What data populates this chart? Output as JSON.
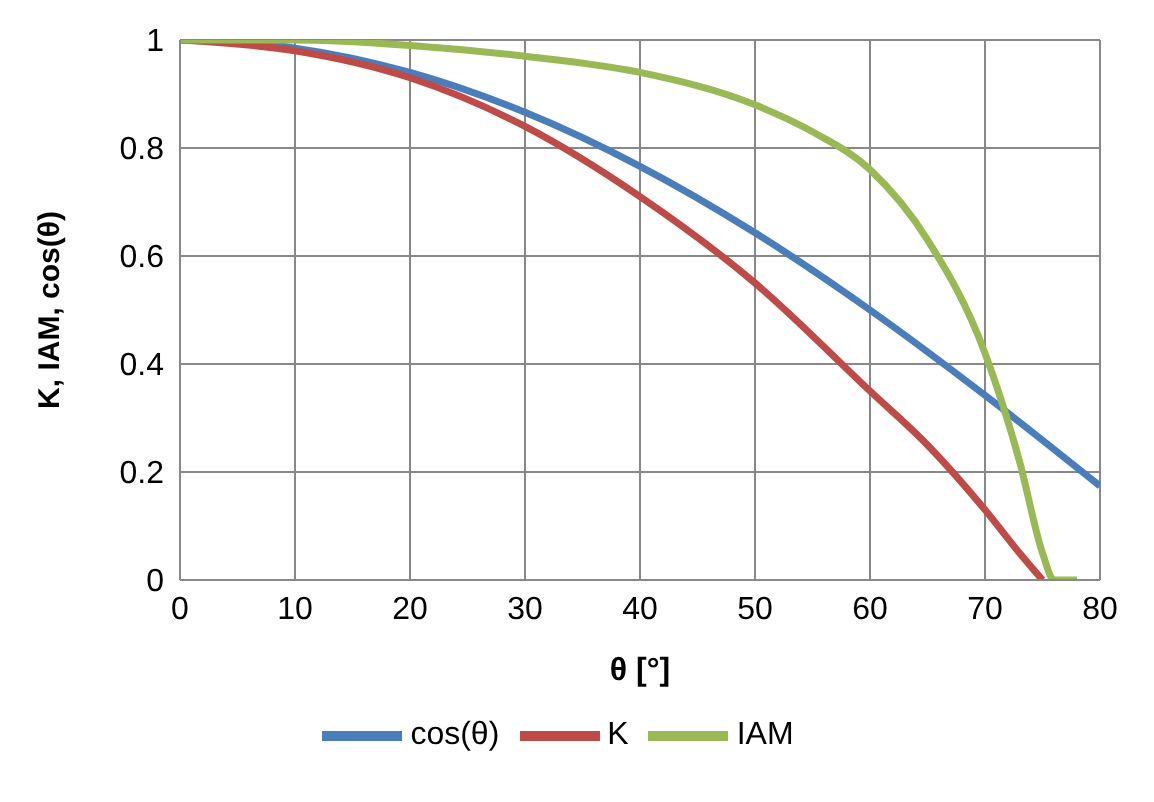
{
  "chart_data": {
    "type": "line",
    "xlabel": "θ [°]",
    "ylabel": "K, IAM, cos(θ)",
    "xlim": [
      0,
      80
    ],
    "xticks": [
      0,
      10,
      20,
      30,
      40,
      50,
      60,
      70,
      80
    ],
    "ylim": [
      0,
      1
    ],
    "yticks": [
      0,
      0.2,
      0.4,
      0.6,
      0.8,
      1
    ],
    "grid": true,
    "legend": "bottom",
    "marker": "none",
    "line_style": "solid",
    "series": [
      {
        "name": "cos(θ)",
        "color": "#4a7ebb",
        "x": [
          0,
          10,
          20,
          30,
          40,
          50,
          60,
          70,
          80
        ],
        "values": [
          1,
          0.985,
          0.94,
          0.866,
          0.766,
          0.643,
          0.5,
          0.342,
          0.174
        ]
      },
      {
        "name": "K",
        "color": "#be4b48",
        "x": [
          0,
          10,
          20,
          30,
          40,
          50,
          60,
          65,
          70,
          73,
          75
        ],
        "values": [
          1,
          0.98,
          0.93,
          0.84,
          0.71,
          0.55,
          0.35,
          0.25,
          0.13,
          0.05,
          0
        ]
      },
      {
        "name": "IAM",
        "color": "#98b954",
        "x": [
          0,
          10,
          20,
          30,
          40,
          50,
          55,
          60,
          65,
          70,
          73,
          75,
          76,
          78
        ],
        "values": [
          1,
          1,
          0.99,
          0.97,
          0.94,
          0.88,
          0.83,
          0.76,
          0.63,
          0.42,
          0.22,
          0.05,
          0,
          0
        ]
      }
    ]
  }
}
